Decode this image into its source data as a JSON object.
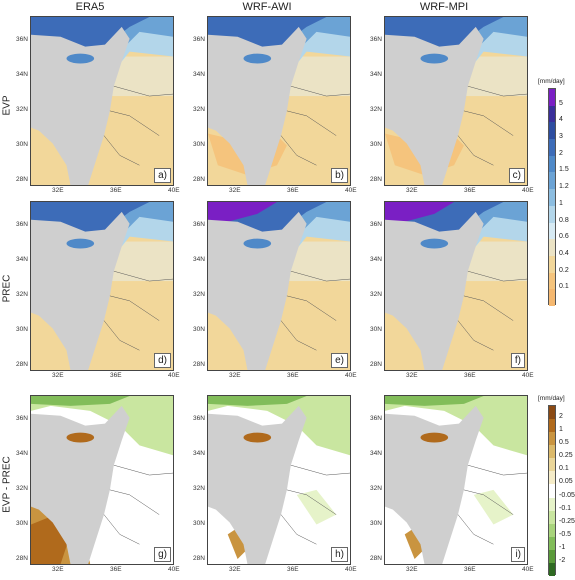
{
  "columns": [
    "ERA5",
    "WRF-AWI",
    "WRF-MPI"
  ],
  "rows": [
    "EVP",
    "PREC",
    "EVP - PREC"
  ],
  "panel_labels": [
    "a)",
    "b)",
    "c)",
    "d)",
    "e)",
    "f)",
    "g)",
    "h)",
    "i)"
  ],
  "x_ticks": [
    "32E",
    "36E",
    "40E"
  ],
  "y_ticks": [
    "36N",
    "34N",
    "32N",
    "30N",
    "28N"
  ],
  "colorbar_top": {
    "title": "[mm/day]",
    "labels": [
      "5",
      "4",
      "3",
      "2",
      "1.5",
      "1.2",
      "1",
      "0.8",
      "0.6",
      "0.4",
      "0.2",
      "0.1"
    ],
    "colors": [
      "#7a1fc4",
      "#3a2f9a",
      "#2d4da0",
      "#3d6cb8",
      "#4f89c8",
      "#6ba3d5",
      "#8cbde0",
      "#b3d6ea",
      "#d7eaf3",
      "#ebe3c5",
      "#f2d79a",
      "#f5c47d",
      "#f5b870"
    ]
  },
  "colorbar_bottom": {
    "title": "[mm/day]",
    "labels": [
      "2",
      "1",
      "0.5",
      "0.25",
      "0.1",
      "0.05",
      "-0.05",
      "-0.1",
      "-0.25",
      "-0.5",
      "-1",
      "-2"
    ],
    "colors": [
      "#8b4a14",
      "#b06a1c",
      "#c99440",
      "#dbb96a",
      "#ead69a",
      "#f5ecc8",
      "#ffffff",
      "#e6f3c9",
      "#c9e6a0",
      "#a8d47c",
      "#82bd5a",
      "#5a9a3a",
      "#2f6a22"
    ]
  }
}
